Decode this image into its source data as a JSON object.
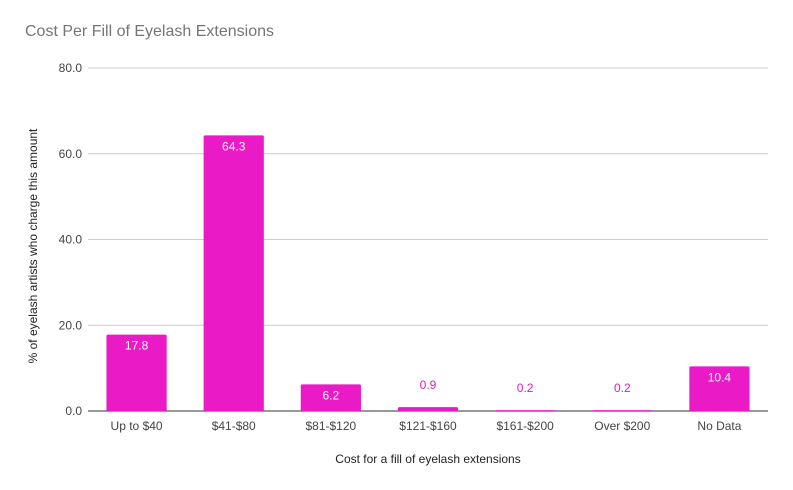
{
  "chart_data": {
    "type": "bar",
    "title": "Cost Per Fill of Eyelash Extensions",
    "xlabel": "Cost for a fill of eyelash extensions",
    "ylabel": "% of eyelash artists who charge this amount",
    "categories": [
      "Up to $40",
      "$41-$80",
      "$81-$120",
      "$121-$160",
      "$161-$200",
      "Over $200",
      "No Data"
    ],
    "values": [
      17.8,
      64.3,
      6.2,
      0.9,
      0.2,
      0.2,
      10.4
    ],
    "data_labels": [
      "17.8",
      "64.3",
      "6.2",
      "0.9",
      "0.2",
      "0.2",
      "10.4"
    ],
    "yticks": [
      0,
      20,
      40,
      60,
      80
    ],
    "ytick_labels": [
      "0.0",
      "20.0",
      "40.0",
      "60.0",
      "80.0"
    ],
    "ylim": [
      0,
      80
    ],
    "grid": true,
    "legend": "none",
    "bar_color": "#ea1bc6",
    "label_inside_color": "#ffffff",
    "label_outside_color": "#d71fb9"
  }
}
